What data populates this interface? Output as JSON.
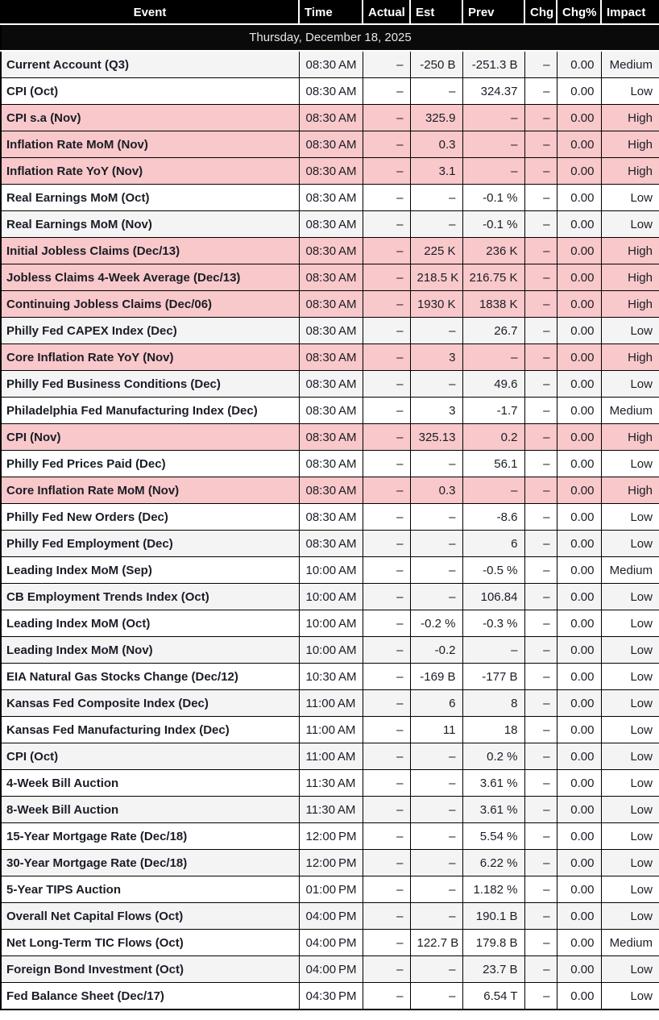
{
  "colors": {
    "header_bg": "#000000",
    "header_text": "#ffffff",
    "date_bg": "#0a0a0a",
    "high_row": "#f9c8ca",
    "stripe_row": "#f4f4f5",
    "grid": "#000000",
    "text": "#1a1d26"
  },
  "table": {
    "date_header": "Thursday, December 18, 2025",
    "columns": [
      {
        "key": "event",
        "label": "Event"
      },
      {
        "key": "time",
        "label": "Time"
      },
      {
        "key": "actual",
        "label": "Actual"
      },
      {
        "key": "est",
        "label": "Est"
      },
      {
        "key": "prev",
        "label": "Prev"
      },
      {
        "key": "chg",
        "label": "Chg"
      },
      {
        "key": "chg_pct",
        "label": "Chg%"
      },
      {
        "key": "impact",
        "label": "Impact"
      }
    ],
    "rows": [
      {
        "event": "Current Account (Q3)",
        "time": "08:30 AM",
        "actual": "–",
        "est": "-250 B",
        "prev": "-251.3 B",
        "chg": "–",
        "chg_pct": "0.00",
        "impact": "Medium"
      },
      {
        "event": "CPI (Oct)",
        "time": "08:30 AM",
        "actual": "–",
        "est": "–",
        "prev": "324.37",
        "chg": "–",
        "chg_pct": "0.00",
        "impact": "Low"
      },
      {
        "event": "CPI s.a (Nov)",
        "time": "08:30 AM",
        "actual": "–",
        "est": "325.9",
        "prev": "–",
        "chg": "–",
        "chg_pct": "0.00",
        "impact": "High"
      },
      {
        "event": "Inflation Rate MoM (Nov)",
        "time": "08:30 AM",
        "actual": "–",
        "est": "0.3",
        "prev": "–",
        "chg": "–",
        "chg_pct": "0.00",
        "impact": "High"
      },
      {
        "event": "Inflation Rate YoY (Nov)",
        "time": "08:30 AM",
        "actual": "–",
        "est": "3.1",
        "prev": "–",
        "chg": "–",
        "chg_pct": "0.00",
        "impact": "High"
      },
      {
        "event": "Real Earnings MoM (Oct)",
        "time": "08:30 AM",
        "actual": "–",
        "est": "–",
        "prev": "-0.1 %",
        "chg": "–",
        "chg_pct": "0.00",
        "impact": "Low"
      },
      {
        "event": "Real Earnings MoM (Nov)",
        "time": "08:30 AM",
        "actual": "–",
        "est": "–",
        "prev": "-0.1 %",
        "chg": "–",
        "chg_pct": "0.00",
        "impact": "Low"
      },
      {
        "event": "Initial Jobless Claims (Dec/13)",
        "time": "08:30 AM",
        "actual": "–",
        "est": "225 K",
        "prev": "236 K",
        "chg": "–",
        "chg_pct": "0.00",
        "impact": "High"
      },
      {
        "event": "Jobless Claims 4-Week Average (Dec/13)",
        "time": "08:30 AM",
        "actual": "–",
        "est": "218.5 K",
        "prev": "216.75 K",
        "chg": "–",
        "chg_pct": "0.00",
        "impact": "High"
      },
      {
        "event": "Continuing Jobless Claims (Dec/06)",
        "time": "08:30 AM",
        "actual": "–",
        "est": "1930 K",
        "prev": "1838 K",
        "chg": "–",
        "chg_pct": "0.00",
        "impact": "High"
      },
      {
        "event": "Philly Fed CAPEX Index (Dec)",
        "time": "08:30 AM",
        "actual": "–",
        "est": "–",
        "prev": "26.7",
        "chg": "–",
        "chg_pct": "0.00",
        "impact": "Low"
      },
      {
        "event": "Core Inflation Rate YoY (Nov)",
        "time": "08:30 AM",
        "actual": "–",
        "est": "3",
        "prev": "–",
        "chg": "–",
        "chg_pct": "0.00",
        "impact": "High"
      },
      {
        "event": "Philly Fed Business Conditions (Dec)",
        "time": "08:30 AM",
        "actual": "–",
        "est": "–",
        "prev": "49.6",
        "chg": "–",
        "chg_pct": "0.00",
        "impact": "Low"
      },
      {
        "event": "Philadelphia Fed Manufacturing Index (Dec)",
        "time": "08:30 AM",
        "actual": "–",
        "est": "3",
        "prev": "-1.7",
        "chg": "–",
        "chg_pct": "0.00",
        "impact": "Medium"
      },
      {
        "event": "CPI (Nov)",
        "time": "08:30 AM",
        "actual": "–",
        "est": "325.13",
        "prev": "0.2",
        "chg": "–",
        "chg_pct": "0.00",
        "impact": "High"
      },
      {
        "event": "Philly Fed Prices Paid (Dec)",
        "time": "08:30 AM",
        "actual": "–",
        "est": "–",
        "prev": "56.1",
        "chg": "–",
        "chg_pct": "0.00",
        "impact": "Low"
      },
      {
        "event": "Core Inflation Rate MoM (Nov)",
        "time": "08:30 AM",
        "actual": "–",
        "est": "0.3",
        "prev": "–",
        "chg": "–",
        "chg_pct": "0.00",
        "impact": "High"
      },
      {
        "event": "Philly Fed New Orders (Dec)",
        "time": "08:30 AM",
        "actual": "–",
        "est": "–",
        "prev": "-8.6",
        "chg": "–",
        "chg_pct": "0.00",
        "impact": "Low"
      },
      {
        "event": "Philly Fed Employment (Dec)",
        "time": "08:30 AM",
        "actual": "–",
        "est": "–",
        "prev": "6",
        "chg": "–",
        "chg_pct": "0.00",
        "impact": "Low"
      },
      {
        "event": "Leading Index MoM (Sep)",
        "time": "10:00 AM",
        "actual": "–",
        "est": "–",
        "prev": "-0.5 %",
        "chg": "–",
        "chg_pct": "0.00",
        "impact": "Medium"
      },
      {
        "event": "CB Employment Trends Index (Oct)",
        "time": "10:00 AM",
        "actual": "–",
        "est": "–",
        "prev": "106.84",
        "chg": "–",
        "chg_pct": "0.00",
        "impact": "Low"
      },
      {
        "event": "Leading Index MoM (Oct)",
        "time": "10:00 AM",
        "actual": "–",
        "est": "-0.2 %",
        "prev": "-0.3 %",
        "chg": "–",
        "chg_pct": "0.00",
        "impact": "Low"
      },
      {
        "event": "Leading Index MoM (Nov)",
        "time": "10:00 AM",
        "actual": "–",
        "est": "-0.2",
        "prev": "–",
        "chg": "–",
        "chg_pct": "0.00",
        "impact": "Low"
      },
      {
        "event": "EIA Natural Gas Stocks Change (Dec/12)",
        "time": "10:30 AM",
        "actual": "–",
        "est": "-169 B",
        "prev": "-177 B",
        "chg": "–",
        "chg_pct": "0.00",
        "impact": "Low"
      },
      {
        "event": "Kansas Fed Composite Index (Dec)",
        "time": "11:00 AM",
        "actual": "–",
        "est": "6",
        "prev": "8",
        "chg": "–",
        "chg_pct": "0.00",
        "impact": "Low"
      },
      {
        "event": "Kansas Fed Manufacturing Index (Dec)",
        "time": "11:00 AM",
        "actual": "–",
        "est": "11",
        "prev": "18",
        "chg": "–",
        "chg_pct": "0.00",
        "impact": "Low"
      },
      {
        "event": "CPI (Oct)",
        "time": "11:00 AM",
        "actual": "–",
        "est": "–",
        "prev": "0.2 %",
        "chg": "–",
        "chg_pct": "0.00",
        "impact": "Low"
      },
      {
        "event": "4-Week Bill Auction",
        "time": "11:30 AM",
        "actual": "–",
        "est": "–",
        "prev": "3.61 %",
        "chg": "–",
        "chg_pct": "0.00",
        "impact": "Low"
      },
      {
        "event": "8-Week Bill Auction",
        "time": "11:30 AM",
        "actual": "–",
        "est": "–",
        "prev": "3.61 %",
        "chg": "–",
        "chg_pct": "0.00",
        "impact": "Low"
      },
      {
        "event": "15-Year Mortgage Rate (Dec/18)",
        "time": "12:00 PM",
        "actual": "–",
        "est": "–",
        "prev": "5.54 %",
        "chg": "–",
        "chg_pct": "0.00",
        "impact": "Low"
      },
      {
        "event": "30-Year Mortgage Rate (Dec/18)",
        "time": "12:00 PM",
        "actual": "–",
        "est": "–",
        "prev": "6.22 %",
        "chg": "–",
        "chg_pct": "0.00",
        "impact": "Low"
      },
      {
        "event": "5-Year TIPS Auction",
        "time": "01:00 PM",
        "actual": "–",
        "est": "–",
        "prev": "1.182 %",
        "chg": "–",
        "chg_pct": "0.00",
        "impact": "Low"
      },
      {
        "event": "Overall Net Capital Flows (Oct)",
        "time": "04:00 PM",
        "actual": "–",
        "est": "–",
        "prev": "190.1 B",
        "chg": "–",
        "chg_pct": "0.00",
        "impact": "Low"
      },
      {
        "event": "Net Long-Term TIC Flows (Oct)",
        "time": "04:00 PM",
        "actual": "–",
        "est": "122.7 B",
        "prev": "179.8 B",
        "chg": "–",
        "chg_pct": "0.00",
        "impact": "Medium"
      },
      {
        "event": "Foreign Bond Investment (Oct)",
        "time": "04:00 PM",
        "actual": "–",
        "est": "–",
        "prev": "23.7 B",
        "chg": "–",
        "chg_pct": "0.00",
        "impact": "Low"
      },
      {
        "event": "Fed Balance Sheet (Dec/17)",
        "time": "04:30 PM",
        "actual": "–",
        "est": "–",
        "prev": "6.54 T",
        "chg": "–",
        "chg_pct": "0.00",
        "impact": "Low"
      }
    ]
  }
}
